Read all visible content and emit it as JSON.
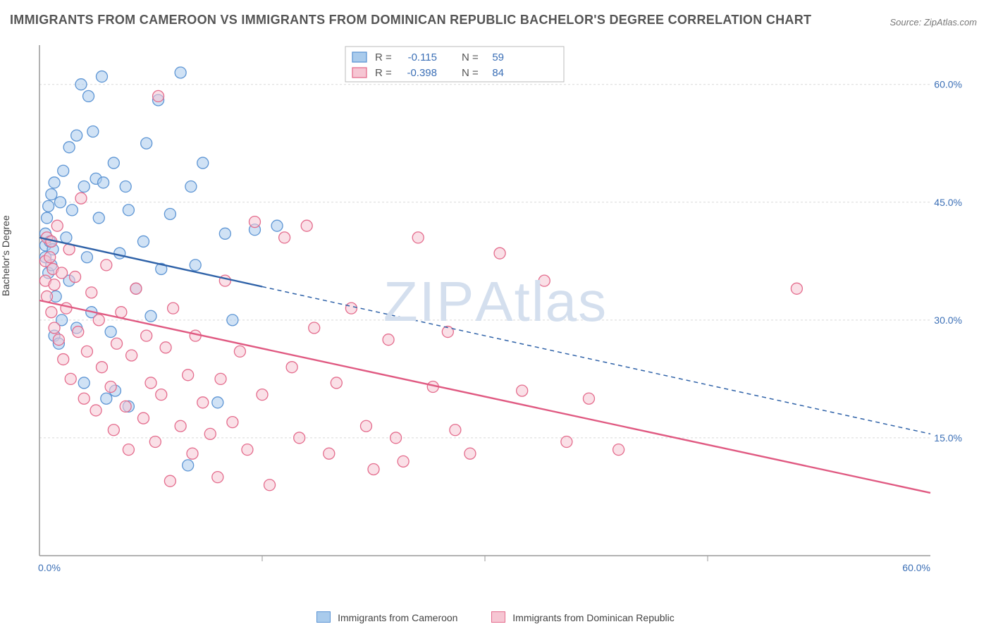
{
  "title": "IMMIGRANTS FROM CAMEROON VS IMMIGRANTS FROM DOMINICAN REPUBLIC BACHELOR'S DEGREE CORRELATION CHART",
  "source": "Source: ZipAtlas.com",
  "ylabel": "Bachelor's Degree",
  "watermark": "ZIPAtlas",
  "chart": {
    "type": "scatter",
    "background_color": "#ffffff",
    "grid_color": "#d9d9d9",
    "axis_color": "#999999",
    "tick_text_color": "#3b6fb6",
    "xlim": [
      0,
      60
    ],
    "ylim": [
      0,
      65
    ],
    "xticks": [
      {
        "v": 0,
        "label": "0.0%"
      },
      {
        "v": 60,
        "label": "60.0%"
      }
    ],
    "xminor": [
      15,
      30,
      45
    ],
    "yticks": [
      {
        "v": 15,
        "label": "15.0%"
      },
      {
        "v": 30,
        "label": "30.0%"
      },
      {
        "v": 45,
        "label": "45.0%"
      },
      {
        "v": 60,
        "label": "60.0%"
      }
    ],
    "marker_radius": 8,
    "marker_opacity": 0.55,
    "series": [
      {
        "name": "Immigrants from Cameroon",
        "fill": "#a9cbec",
        "stroke": "#5d95d4",
        "line_color": "#2f62a8",
        "line_width": 2.4,
        "r_value": "-0.115",
        "n_value": "59",
        "regression": {
          "x1": 0,
          "y1": 40.5,
          "x2": 60,
          "y2": 15.5,
          "solid_until_x": 15
        },
        "points": [
          [
            0.4,
            38.0
          ],
          [
            0.4,
            39.5
          ],
          [
            0.4,
            41.0
          ],
          [
            0.5,
            43.0
          ],
          [
            0.6,
            36.0
          ],
          [
            0.6,
            44.5
          ],
          [
            0.7,
            40.0
          ],
          [
            0.8,
            37.0
          ],
          [
            0.8,
            46.0
          ],
          [
            0.9,
            39.0
          ],
          [
            1.0,
            28.0
          ],
          [
            1.0,
            47.5
          ],
          [
            1.1,
            33.0
          ],
          [
            1.3,
            27.0
          ],
          [
            1.4,
            45.0
          ],
          [
            1.5,
            30.0
          ],
          [
            1.6,
            49.0
          ],
          [
            1.8,
            40.5
          ],
          [
            2.0,
            52.0
          ],
          [
            2.0,
            35.0
          ],
          [
            2.2,
            44.0
          ],
          [
            2.5,
            29.0
          ],
          [
            2.5,
            53.5
          ],
          [
            2.8,
            60.0
          ],
          [
            3.0,
            47.0
          ],
          [
            3.0,
            22.0
          ],
          [
            3.2,
            38.0
          ],
          [
            3.3,
            58.5
          ],
          [
            3.5,
            31.0
          ],
          [
            3.6,
            54.0
          ],
          [
            3.8,
            48.0
          ],
          [
            4.0,
            43.0
          ],
          [
            4.2,
            61.0
          ],
          [
            4.3,
            47.5
          ],
          [
            4.5,
            20.0
          ],
          [
            4.8,
            28.5
          ],
          [
            5.0,
            50.0
          ],
          [
            5.1,
            21.0
          ],
          [
            5.4,
            38.5
          ],
          [
            5.8,
            47.0
          ],
          [
            6.0,
            44.0
          ],
          [
            6.0,
            19.0
          ],
          [
            6.5,
            34.0
          ],
          [
            7.0,
            40.0
          ],
          [
            7.2,
            52.5
          ],
          [
            7.5,
            30.5
          ],
          [
            8.0,
            58.0
          ],
          [
            8.2,
            36.5
          ],
          [
            8.8,
            43.5
          ],
          [
            9.5,
            61.5
          ],
          [
            10.0,
            11.5
          ],
          [
            10.2,
            47.0
          ],
          [
            10.5,
            37.0
          ],
          [
            11.0,
            50.0
          ],
          [
            12.0,
            19.5
          ],
          [
            12.5,
            41.0
          ],
          [
            13.0,
            30.0
          ],
          [
            14.5,
            41.5
          ],
          [
            16.0,
            42.0
          ]
        ]
      },
      {
        "name": "Immigrants from Dominican Republic",
        "fill": "#f6c6d3",
        "stroke": "#e46c8d",
        "line_color": "#e05a82",
        "line_width": 2.4,
        "r_value": "-0.398",
        "n_value": "84",
        "regression": {
          "x1": 0,
          "y1": 32.5,
          "x2": 60,
          "y2": 8.0,
          "solid_until_x": 60
        },
        "points": [
          [
            0.4,
            37.5
          ],
          [
            0.4,
            35.0
          ],
          [
            0.5,
            40.5
          ],
          [
            0.5,
            33.0
          ],
          [
            0.7,
            38.0
          ],
          [
            0.8,
            31.0
          ],
          [
            0.8,
            40.0
          ],
          [
            0.9,
            36.5
          ],
          [
            1.0,
            29.0
          ],
          [
            1.0,
            34.5
          ],
          [
            1.2,
            42.0
          ],
          [
            1.3,
            27.5
          ],
          [
            1.5,
            36.0
          ],
          [
            1.6,
            25.0
          ],
          [
            1.8,
            31.5
          ],
          [
            2.0,
            39.0
          ],
          [
            2.1,
            22.5
          ],
          [
            2.4,
            35.5
          ],
          [
            2.6,
            28.5
          ],
          [
            2.8,
            45.5
          ],
          [
            3.0,
            20.0
          ],
          [
            3.2,
            26.0
          ],
          [
            3.5,
            33.5
          ],
          [
            3.8,
            18.5
          ],
          [
            4.0,
            30.0
          ],
          [
            4.2,
            24.0
          ],
          [
            4.5,
            37.0
          ],
          [
            4.8,
            21.5
          ],
          [
            5.0,
            16.0
          ],
          [
            5.2,
            27.0
          ],
          [
            5.5,
            31.0
          ],
          [
            5.8,
            19.0
          ],
          [
            6.0,
            13.5
          ],
          [
            6.2,
            25.5
          ],
          [
            6.5,
            34.0
          ],
          [
            7.0,
            17.5
          ],
          [
            7.2,
            28.0
          ],
          [
            7.5,
            22.0
          ],
          [
            7.8,
            14.5
          ],
          [
            8.0,
            58.5
          ],
          [
            8.2,
            20.5
          ],
          [
            8.5,
            26.5
          ],
          [
            8.8,
            9.5
          ],
          [
            9.0,
            31.5
          ],
          [
            9.5,
            16.5
          ],
          [
            10.0,
            23.0
          ],
          [
            10.3,
            13.0
          ],
          [
            10.5,
            28.0
          ],
          [
            11.0,
            19.5
          ],
          [
            11.5,
            15.5
          ],
          [
            12.0,
            10.0
          ],
          [
            12.2,
            22.5
          ],
          [
            12.5,
            35.0
          ],
          [
            13.0,
            17.0
          ],
          [
            13.5,
            26.0
          ],
          [
            14.0,
            13.5
          ],
          [
            14.5,
            42.5
          ],
          [
            15.0,
            20.5
          ],
          [
            15.5,
            9.0
          ],
          [
            16.5,
            40.5
          ],
          [
            17.0,
            24.0
          ],
          [
            17.5,
            15.0
          ],
          [
            18.0,
            42.0
          ],
          [
            18.5,
            29.0
          ],
          [
            19.5,
            13.0
          ],
          [
            20.0,
            22.0
          ],
          [
            21.0,
            31.5
          ],
          [
            22.0,
            16.5
          ],
          [
            22.5,
            11.0
          ],
          [
            23.5,
            27.5
          ],
          [
            24.0,
            15.0
          ],
          [
            24.5,
            12.0
          ],
          [
            25.5,
            40.5
          ],
          [
            26.5,
            21.5
          ],
          [
            27.5,
            28.5
          ],
          [
            28.0,
            16.0
          ],
          [
            29.0,
            13.0
          ],
          [
            31.0,
            38.5
          ],
          [
            32.5,
            21.0
          ],
          [
            34.0,
            35.0
          ],
          [
            35.5,
            14.5
          ],
          [
            37.0,
            20.0
          ],
          [
            39.0,
            13.5
          ],
          [
            51.0,
            34.0
          ]
        ]
      }
    ]
  },
  "legend_box": {
    "r_label": "R =",
    "n_label": "N ="
  },
  "bottom_legend": {
    "items": [
      {
        "label": "Immigrants from Cameroon",
        "fill": "#a9cbec",
        "stroke": "#5d95d4"
      },
      {
        "label": "Immigrants from Dominican Republic",
        "fill": "#f6c6d3",
        "stroke": "#e46c8d"
      }
    ]
  }
}
